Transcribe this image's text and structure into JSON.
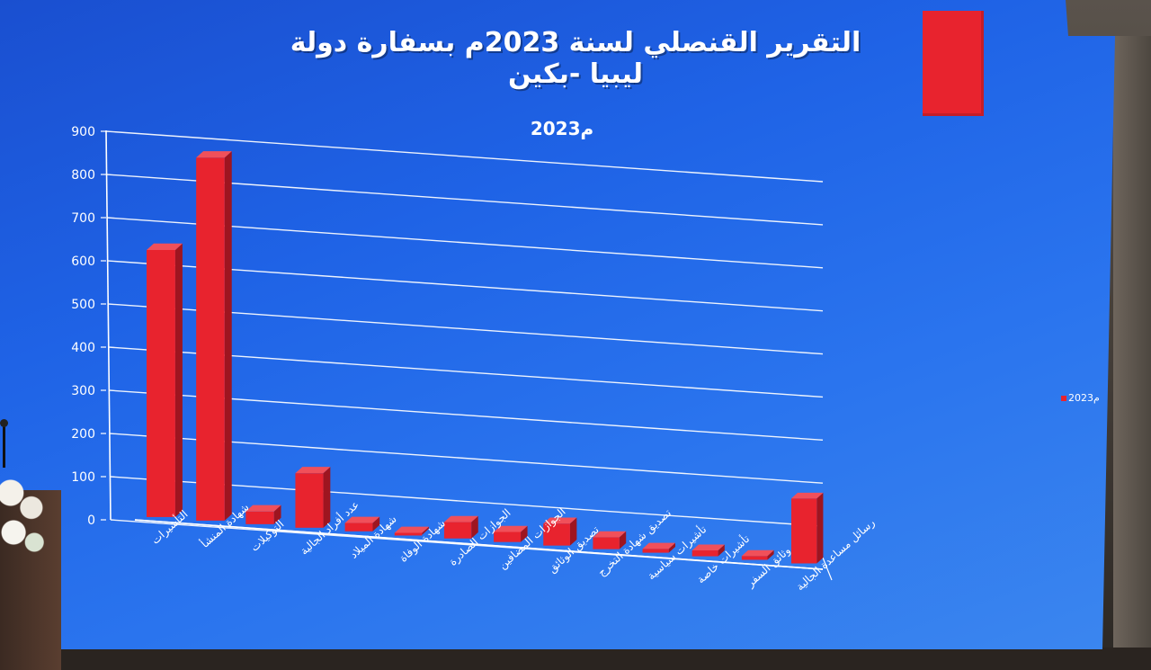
{
  "slide": {
    "title": "التقرير القنصلي لسنة 2023م بسفارة دولة ليبيا -بكين",
    "legend_label": "2023م",
    "bar_color": "#e8232e"
  },
  "chart_data": {
    "type": "bar",
    "title": "2023م",
    "xlabel": "",
    "ylabel": "",
    "ylim": [
      0,
      900
    ],
    "yticks": [
      "0",
      "100",
      "200",
      "300",
      "400",
      "500",
      "600",
      "700",
      "800",
      "900"
    ],
    "grid": true,
    "legend_placement": "right",
    "categories": [
      "التأشيرات",
      "شهادة المنشأ",
      "التوكيلات",
      "عدد أفراد الجالية",
      "شهادة الميلاد",
      "شهادة الوفاة",
      "الجوازات الصادرة",
      "الجوازات المضافين",
      "تصديق الوثائق",
      "تصديق شهادة التخرج",
      "تأشيرات سياسية",
      "تأشيرات خاصة",
      "وثائق السفر",
      "رسائل مساعدة الجالية"
    ],
    "series": [
      {
        "name": "2023م",
        "values": [
          620,
          850,
          30,
          130,
          20,
          5,
          40,
          25,
          55,
          30,
          10,
          15,
          10,
          170
        ]
      }
    ]
  }
}
